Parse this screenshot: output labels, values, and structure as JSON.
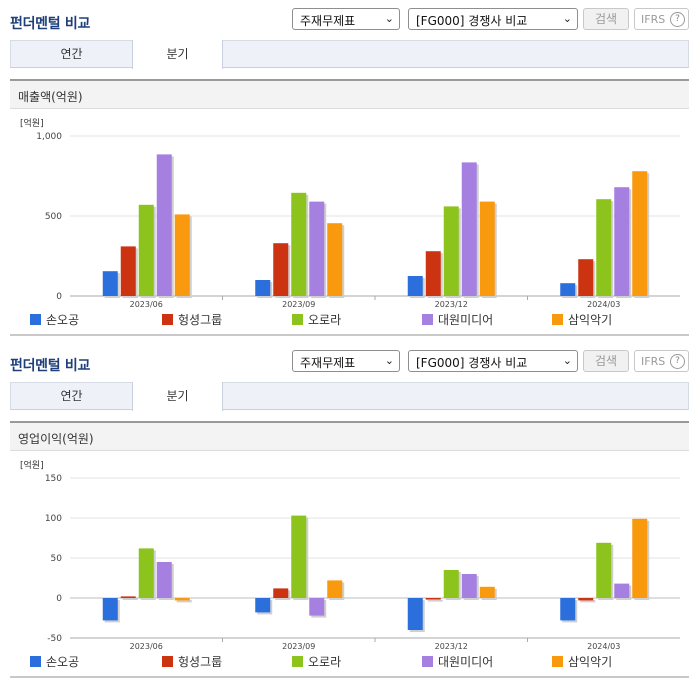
{
  "colors": [
    "#2a6fdb",
    "#cc3311",
    "#8cc31c",
    "#a680e0",
    "#f99a0e"
  ],
  "panels": [
    {
      "title": "펀더멘털 비교",
      "select1": "주재무제표",
      "select2": "[FG000] 경쟁사 비교",
      "search_label": "검색",
      "ifrs_label": "IFRS",
      "help_glyph": "?",
      "tab_annual": "연간",
      "tab_quarter": "분기",
      "section_title": "매출액(억원)",
      "legend": [
        "손오공",
        "헝셩그룹",
        "오로라",
        "대원미디어",
        "삼익악기"
      ]
    },
    {
      "title": "펀더멘털 비교",
      "select1": "주재무제표",
      "select2": "[FG000] 경쟁사 비교",
      "search_label": "검색",
      "ifrs_label": "IFRS",
      "help_glyph": "?",
      "tab_annual": "연간",
      "tab_quarter": "분기",
      "section_title": "영업이익(억원)",
      "legend": [
        "손오공",
        "헝셩그룹",
        "오로라",
        "대원미디어",
        "삼익악기"
      ]
    }
  ],
  "chart_data": [
    {
      "type": "bar",
      "unit_label": "[억원]",
      "categories": [
        "2023/06",
        "2023/09",
        "2023/12",
        "2024/03"
      ],
      "ylim": [
        0,
        1000
      ],
      "yticks": [
        0,
        500,
        1000
      ],
      "ytick_labels": [
        "0",
        "500",
        "1,000"
      ],
      "series": [
        {
          "name": "손오공",
          "values": [
            155,
            100,
            125,
            80
          ]
        },
        {
          "name": "헝셩그룹",
          "values": [
            310,
            330,
            280,
            230
          ]
        },
        {
          "name": "오로라",
          "values": [
            570,
            645,
            560,
            605
          ]
        },
        {
          "name": "대원미디어",
          "values": [
            885,
            590,
            835,
            680
          ]
        },
        {
          "name": "삼익악기",
          "values": [
            510,
            455,
            590,
            780
          ]
        }
      ]
    },
    {
      "type": "bar",
      "unit_label": "[억원]",
      "categories": [
        "2023/06",
        "2023/09",
        "2023/12",
        "2024/03"
      ],
      "ylim": [
        -50,
        150
      ],
      "yticks": [
        -50,
        0,
        50,
        100,
        150
      ],
      "ytick_labels": [
        "-50",
        "0",
        "50",
        "100",
        "150"
      ],
      "series": [
        {
          "name": "손오공",
          "values": [
            -28,
            -18,
            -40,
            -28
          ]
        },
        {
          "name": "헝셩그룹",
          "values": [
            2,
            12,
            -2,
            -3
          ]
        },
        {
          "name": "오로라",
          "values": [
            62,
            103,
            35,
            69
          ]
        },
        {
          "name": "대원미디어",
          "values": [
            45,
            -22,
            30,
            18
          ]
        },
        {
          "name": "삼익악기",
          "values": [
            -3,
            22,
            14,
            99
          ]
        }
      ]
    }
  ]
}
